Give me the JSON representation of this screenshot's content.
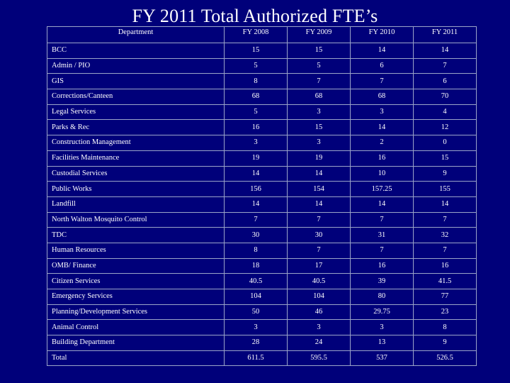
{
  "slide": {
    "title": "FY 2011 Total Authorized FTE’s"
  },
  "table": {
    "headers": [
      "Department",
      "FY 2008",
      "FY 2009",
      "FY 2010",
      "FY 2011"
    ],
    "rows": [
      [
        "BCC",
        "15",
        "15",
        "14",
        "14"
      ],
      [
        "Admin / PIO",
        "5",
        "5",
        "6",
        "7"
      ],
      [
        "GIS",
        "8",
        "7",
        "7",
        "6"
      ],
      [
        "Corrections/Canteen",
        "68",
        "68",
        "68",
        "70"
      ],
      [
        "Legal Services",
        "5",
        "3",
        "3",
        "4"
      ],
      [
        "Parks & Rec",
        "16",
        "15",
        "14",
        "12"
      ],
      [
        "Construction Management",
        "3",
        "3",
        "2",
        "0"
      ],
      [
        "Facilities Maintenance",
        "19",
        "19",
        "16",
        "15"
      ],
      [
        "Custodial Services",
        "14",
        "14",
        "10",
        "9"
      ],
      [
        "Public Works",
        "156",
        "154",
        "157.25",
        "155"
      ],
      [
        "Landfill",
        "14",
        "14",
        "14",
        "14"
      ],
      [
        "North Walton Mosquito Control",
        "7",
        "7",
        "7",
        "7"
      ],
      [
        "TDC",
        "30",
        "30",
        "31",
        "32"
      ],
      [
        "Human Resources",
        "8",
        "7",
        "7",
        "7"
      ],
      [
        "OMB/ Finance",
        "18",
        "17",
        "16",
        "16"
      ],
      [
        "Citizen Services",
        "40.5",
        "40.5",
        "39",
        "41.5"
      ],
      [
        "Emergency Services",
        "104",
        "104",
        "80",
        "77"
      ],
      [
        "Planning/Development Services",
        "50",
        "46",
        "29.75",
        "23"
      ],
      [
        "Animal Control",
        "3",
        "3",
        "3",
        "8"
      ],
      [
        "Building Department",
        "28",
        "24",
        "13",
        "9"
      ],
      [
        "Total",
        "611.5",
        "595.5",
        "537",
        "526.5"
      ]
    ]
  },
  "colors": {
    "background": "#00007a",
    "text": "#ffffff",
    "grid": "#9aa4c8"
  }
}
